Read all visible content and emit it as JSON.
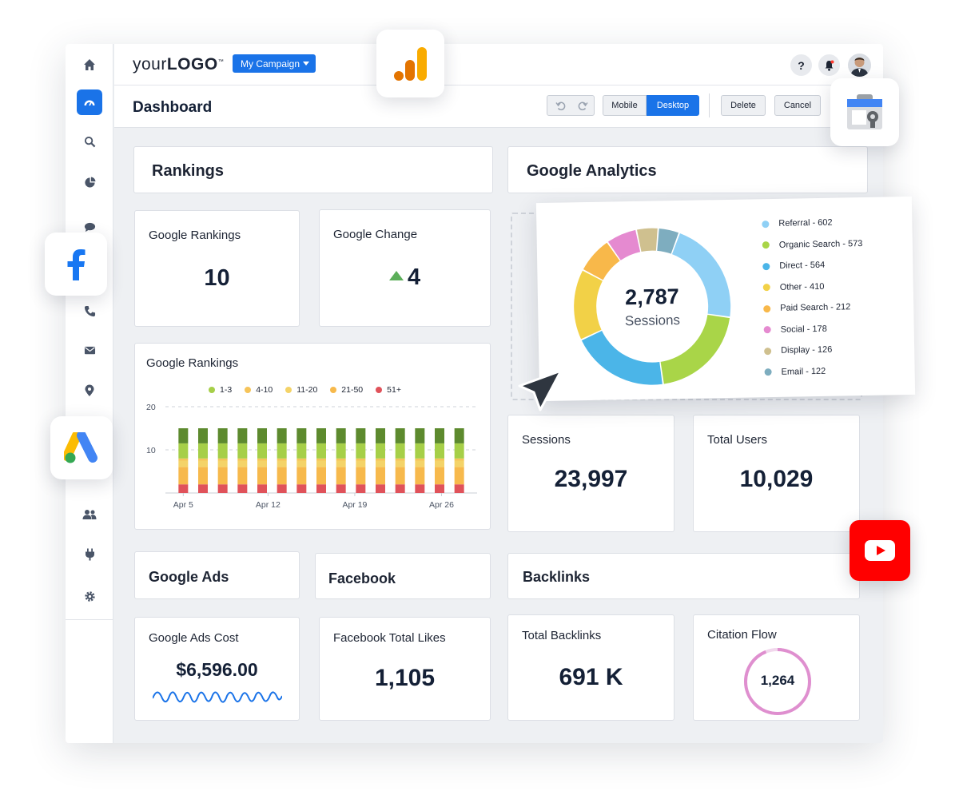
{
  "header": {
    "logo_prefix": "your",
    "logo_main": "LOGO",
    "logo_tm": "™",
    "campaign_label": "My Campaign",
    "help_label": "?"
  },
  "toolbar": {
    "page_title": "Dashboard",
    "mobile_label": "Mobile",
    "desktop_label": "Desktop",
    "delete_label": "Delete",
    "cancel_label": "Cancel"
  },
  "sidebar": {
    "items": [
      "home-icon",
      "dashboard-icon",
      "search-icon",
      "pie-chart-icon",
      "chat-icon",
      "phone-icon",
      "mail-icon",
      "location-icon",
      "users-icon",
      "plug-icon",
      "gear-icon"
    ]
  },
  "sections": {
    "rankings": "Rankings",
    "analytics": "Google Analytics",
    "google_ads": "Google Ads",
    "facebook": "Facebook",
    "backlinks": "Backlinks"
  },
  "kpis": {
    "google_rankings": {
      "label": "Google Rankings",
      "value": "10"
    },
    "google_change": {
      "label": "Google Change",
      "value": "4"
    },
    "sessions": {
      "label": "Sessions",
      "value": "23,997"
    },
    "total_users": {
      "label": "Total Users",
      "value": "10,029"
    },
    "ads_cost": {
      "label": "Google Ads Cost",
      "value": "$6,596.00"
    },
    "fb_likes": {
      "label": "Facebook Total Likes",
      "value": "1,105"
    },
    "total_backlinks": {
      "label": "Total Backlinks",
      "value": "691 K"
    },
    "citation_flow": {
      "label": "Citation Flow",
      "value": "1,264"
    }
  },
  "colors": {
    "accent": "#1a73e8",
    "youtube": "#ff0000",
    "facebook": "#1877f2"
  },
  "chart_data": [
    {
      "type": "bar",
      "title": "Google Rankings",
      "stacked": true,
      "legend_position": "top",
      "ylim": [
        0,
        20
      ],
      "yticks": [
        "20",
        "10"
      ],
      "xticks": [
        "Apr 5",
        "Apr 12",
        "Apr 19",
        "Apr 26"
      ],
      "bar_count": 15,
      "grid": true,
      "series": [
        {
          "name": "51+",
          "color": "#e0525a",
          "values": [
            2,
            2,
            2,
            2,
            2,
            2,
            2,
            2,
            2,
            2,
            2,
            2,
            2,
            2,
            2
          ]
        },
        {
          "name": "21-50",
          "color": "#f7b94c",
          "values": [
            4,
            4,
            4,
            4,
            4,
            4,
            4,
            4,
            4,
            4,
            4,
            4,
            4,
            4,
            4
          ]
        },
        {
          "name": "11-20",
          "color": "#f4d368",
          "values": [
            1.5,
            1.5,
            1.5,
            1.5,
            1.5,
            1.5,
            1.5,
            1.5,
            1.5,
            1.5,
            1.5,
            1.5,
            1.5,
            1.5,
            1.5
          ]
        },
        {
          "name": "4-10",
          "color": "#f6c45a",
          "values": [
            0.5,
            0.5,
            0.5,
            0.5,
            0.5,
            0.5,
            0.5,
            0.5,
            0.5,
            0.5,
            0.5,
            0.5,
            0.5,
            0.5,
            0.5
          ]
        },
        {
          "name": "1-3",
          "color": "#a6cf48",
          "values": [
            3.5,
            3.5,
            3.5,
            3.5,
            3.5,
            3.5,
            3.5,
            3.5,
            3.5,
            3.5,
            3.5,
            3.5,
            3.5,
            3.5,
            3.5
          ]
        },
        {
          "name": "",
          "color": "#5d8a2e",
          "values": [
            3.5,
            3.5,
            3.5,
            3.5,
            3.5,
            3.5,
            3.5,
            3.5,
            3.5,
            3.5,
            3.5,
            3.5,
            3.5,
            3.5,
            3.5
          ]
        }
      ],
      "legend": [
        {
          "name": "1-3",
          "color": "#a6cf48"
        },
        {
          "name": "4-10",
          "color": "#f6c45a"
        },
        {
          "name": "11-20",
          "color": "#f4d368"
        },
        {
          "name": "21-50",
          "color": "#f7b94c"
        },
        {
          "name": "51+",
          "color": "#e0525a"
        }
      ]
    },
    {
      "type": "pie",
      "donut": true,
      "center_value": "2,787",
      "center_label": "Sessions",
      "legend_position": "right",
      "slices": [
        {
          "name": "Referral",
          "value": 602,
          "label": "Referral - 602",
          "color": "#8fd0f5"
        },
        {
          "name": "Organic Search",
          "value": 573,
          "label": "Organic Search - 573",
          "color": "#a9d548"
        },
        {
          "name": "Direct",
          "value": 564,
          "label": "Direct - 564",
          "color": "#4bb5e8"
        },
        {
          "name": "Other",
          "value": 410,
          "label": "Other - 410",
          "color": "#f2d147"
        },
        {
          "name": "Paid Search",
          "value": 212,
          "label": "Paid Search - 212",
          "color": "#f8b84a"
        },
        {
          "name": "Social",
          "value": 178,
          "label": "Social - 178",
          "color": "#e58ad0"
        },
        {
          "name": "Display",
          "value": 126,
          "label": "Display - 126",
          "color": "#cfc08f"
        },
        {
          "name": "Email",
          "value": 122,
          "label": "Email - 122",
          "color": "#7eadbf"
        }
      ]
    }
  ]
}
